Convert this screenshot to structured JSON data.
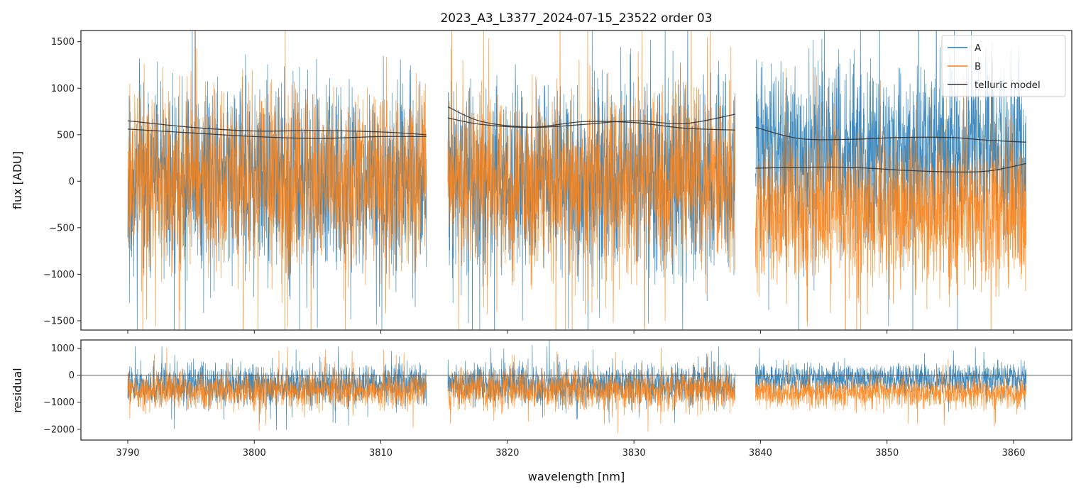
{
  "chart_data": [
    {
      "type": "line",
      "panel": "flux",
      "title": "2023_A3_L3377_2024-07-15_23522  order 03",
      "xlabel": "",
      "ylabel": "flux [ADU]",
      "xlim": [
        3786.3,
        3864.6
      ],
      "ylim": [
        -1600,
        1620
      ],
      "yticks": [
        -1500,
        -1000,
        -500,
        0,
        500,
        1000,
        1500
      ],
      "yticklabels": [
        "−1500",
        "−1000",
        "−500",
        "0",
        "500",
        "1000",
        "1500"
      ],
      "grid": false,
      "legend_position": "top-right",
      "segments": [
        [
          3790.0,
          3813.6
        ],
        [
          3815.3,
          3838.0
        ],
        [
          3839.6,
          3861.0
        ]
      ],
      "series": [
        {
          "name": "A",
          "color": "#1f77b4",
          "style": "noisy-spectrum",
          "noise_amplitude": [
            1600,
            1600,
            1500
          ],
          "mean_level": [
            0,
            0,
            300
          ],
          "seed": 11
        },
        {
          "name": "B",
          "color": "#ff7f0e",
          "style": "noisy-spectrum",
          "noise_amplitude": [
            1500,
            1550,
            1300
          ],
          "mean_level": [
            0,
            0,
            -300
          ],
          "seed": 29
        },
        {
          "name": "telluric model",
          "color": "#333333",
          "style": "smooth",
          "curves": [
            {
              "x": [
                3790,
                3795,
                3800,
                3805,
                3810,
                3813.6
              ],
              "y": [
                650,
                580,
                540,
                545,
                530,
                500
              ]
            },
            {
              "x": [
                3790,
                3795,
                3800,
                3805,
                3810,
                3813.6
              ],
              "y": [
                560,
                520,
                480,
                460,
                480,
                480
              ]
            },
            {
              "x": [
                3815.3,
                3818,
                3822,
                3826,
                3830,
                3834,
                3838
              ],
              "y": [
                800,
                640,
                580,
                610,
                650,
                620,
                720
              ]
            },
            {
              "x": [
                3815.3,
                3818,
                3822,
                3826,
                3830,
                3834,
                3838
              ],
              "y": [
                680,
                610,
                580,
                640,
                630,
                570,
                550
              ]
            },
            {
              "x": [
                3839.6,
                3843,
                3847,
                3851,
                3855,
                3858,
                3861
              ],
              "y": [
                580,
                460,
                450,
                470,
                470,
                440,
                420
              ]
            },
            {
              "x": [
                3839.6,
                3843,
                3847,
                3851,
                3855,
                3858,
                3861
              ],
              "y": [
                140,
                150,
                150,
                120,
                100,
                110,
                190
              ]
            }
          ]
        }
      ]
    },
    {
      "type": "line",
      "panel": "residual",
      "title": "",
      "xlabel": "wavelength [nm]",
      "ylabel": "residual",
      "xlim": [
        3786.3,
        3864.6
      ],
      "ylim": [
        -2400,
        1300
      ],
      "xticks": [
        3790,
        3800,
        3810,
        3820,
        3830,
        3840,
        3850,
        3860
      ],
      "xticklabels": [
        "3790",
        "3800",
        "3810",
        "3820",
        "3830",
        "3840",
        "3850",
        "3860"
      ],
      "yticks": [
        -2000,
        -1000,
        0,
        1000
      ],
      "yticklabels": [
        "−2000",
        "−1000",
        "0",
        "1000"
      ],
      "grid": false,
      "reference_line": 0,
      "series": [
        {
          "name": "A",
          "color": "#1f77b4",
          "style": "noisy-spectrum",
          "noise_amplitude": [
            1200,
            1200,
            900
          ],
          "mean_level": [
            -350,
            -350,
            -150
          ],
          "seed": 47
        },
        {
          "name": "B",
          "color": "#ff7f0e",
          "style": "noisy-spectrum",
          "noise_amplitude": [
            1100,
            1150,
            900
          ],
          "mean_level": [
            -550,
            -550,
            -650
          ],
          "seed": 83
        }
      ]
    }
  ]
}
